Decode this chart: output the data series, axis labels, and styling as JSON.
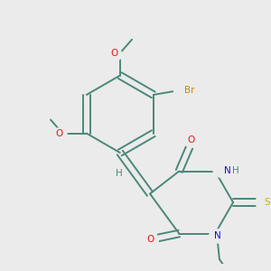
{
  "background_color": "#ebebeb",
  "bond_color": "#4a8878",
  "atom_colors": {
    "O": "#ee1111",
    "N": "#1111cc",
    "S": "#bbbb00",
    "Br": "#cc8800",
    "H": "#4a8878",
    "C": "#4a8878"
  },
  "figsize": [
    3.0,
    3.0
  ],
  "dpi": 100
}
